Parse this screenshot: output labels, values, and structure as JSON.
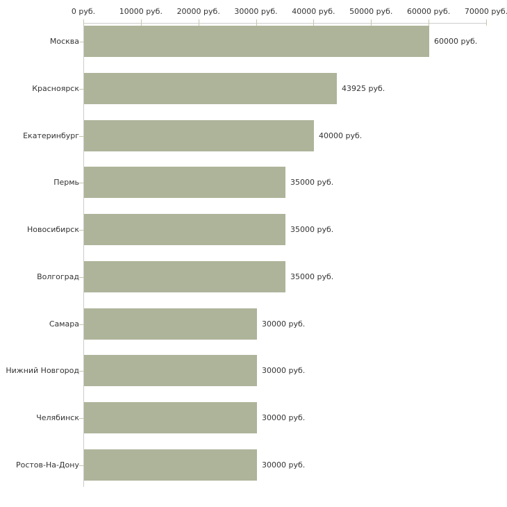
{
  "chart_data": {
    "type": "bar",
    "orientation": "horizontal",
    "title": "",
    "categories": [
      "Москва",
      "Красноярск",
      "Екатеринбург",
      "Пермь",
      "Новосибирск",
      "Волгоград",
      "Самара",
      "Нижний Новгород",
      "Челябинск",
      "Ростов-На-Дону"
    ],
    "values": [
      60000,
      43925,
      40000,
      35000,
      35000,
      35000,
      30000,
      30000,
      30000,
      30000
    ],
    "value_labels": [
      "60000 руб.",
      "43925 руб.",
      "40000 руб.",
      "35000 руб.",
      "35000 руб.",
      "35000 руб.",
      "30000 руб.",
      "30000 руб.",
      "30000 руб.",
      "30000 руб."
    ],
    "x_axis": {
      "position": "top",
      "min": 0,
      "max": 70000,
      "ticks": [
        0,
        10000,
        20000,
        30000,
        40000,
        50000,
        60000,
        70000
      ],
      "tick_labels": [
        "0 руб.",
        "10000 руб.",
        "20000 руб.",
        "30000 руб.",
        "40000 руб.",
        "50000 руб.",
        "60000 руб.",
        "70000 руб."
      ]
    },
    "ylabel": "",
    "xlabel": "",
    "grid": false,
    "legend": false,
    "colors": {
      "bar": "#aeb49a",
      "axis_line": "#cccccc",
      "tick_mark": "#c3c7a9",
      "text": "#333333",
      "background": "#ffffff"
    }
  }
}
